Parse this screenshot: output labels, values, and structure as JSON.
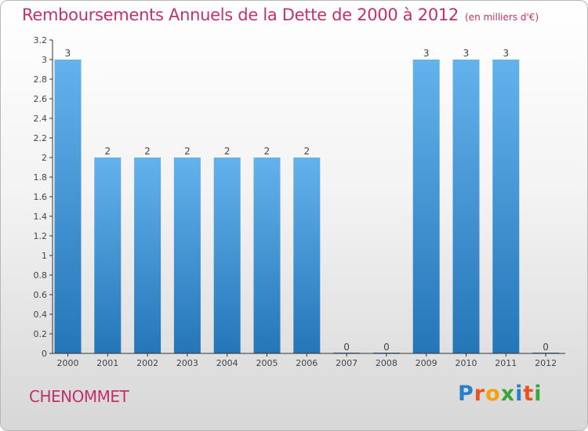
{
  "title": "Remboursements Annuels de la Dette de 2000 à 2012",
  "unit_note": "(en milliers d'€)",
  "commune": "CHENOMMET",
  "logo": {
    "letters": [
      "P",
      "r",
      "o",
      "x",
      "i",
      "t",
      "i"
    ],
    "colors": [
      "#2b7fc8",
      "#e8541e",
      "#f2a20c",
      "#3aa63a",
      "#2b7fc8",
      "#e8541e",
      "#3aa63a"
    ]
  },
  "colors": {
    "bar_light": "#64b2ec",
    "bar_dark": "#2476b8",
    "title": "#c2306a"
  },
  "chart_data": {
    "type": "bar",
    "title": "Remboursements Annuels de la Dette de 2000 à 2012",
    "categories": [
      "2000",
      "2001",
      "2002",
      "2003",
      "2004",
      "2005",
      "2006",
      "2007",
      "2008",
      "2009",
      "2010",
      "2011",
      "2012"
    ],
    "values": [
      3,
      2,
      2,
      2,
      2,
      2,
      2,
      0,
      0,
      3,
      3,
      3,
      0
    ],
    "value_labels": [
      "3",
      "2",
      "2",
      "2",
      "2",
      "2",
      "2",
      "0",
      "0",
      "3",
      "3",
      "3",
      "0"
    ],
    "ylim": [
      0,
      3.2
    ],
    "yticks": [
      0,
      0.2,
      0.4,
      0.6,
      0.8,
      1,
      1.2,
      1.4,
      1.6,
      1.8,
      2,
      2.2,
      2.4,
      2.6,
      2.8,
      3,
      3.2
    ],
    "ytick_labels": [
      "0",
      "0.2",
      "0.4",
      "0.6",
      "0.8",
      "1",
      "1.2",
      "1.4",
      "1.6",
      "1.8",
      "2",
      "2.2",
      "2.4",
      "2.6",
      "2.8",
      "3",
      "3.2"
    ],
    "xlabel": "",
    "ylabel": "",
    "grid": false,
    "legend": "none"
  }
}
